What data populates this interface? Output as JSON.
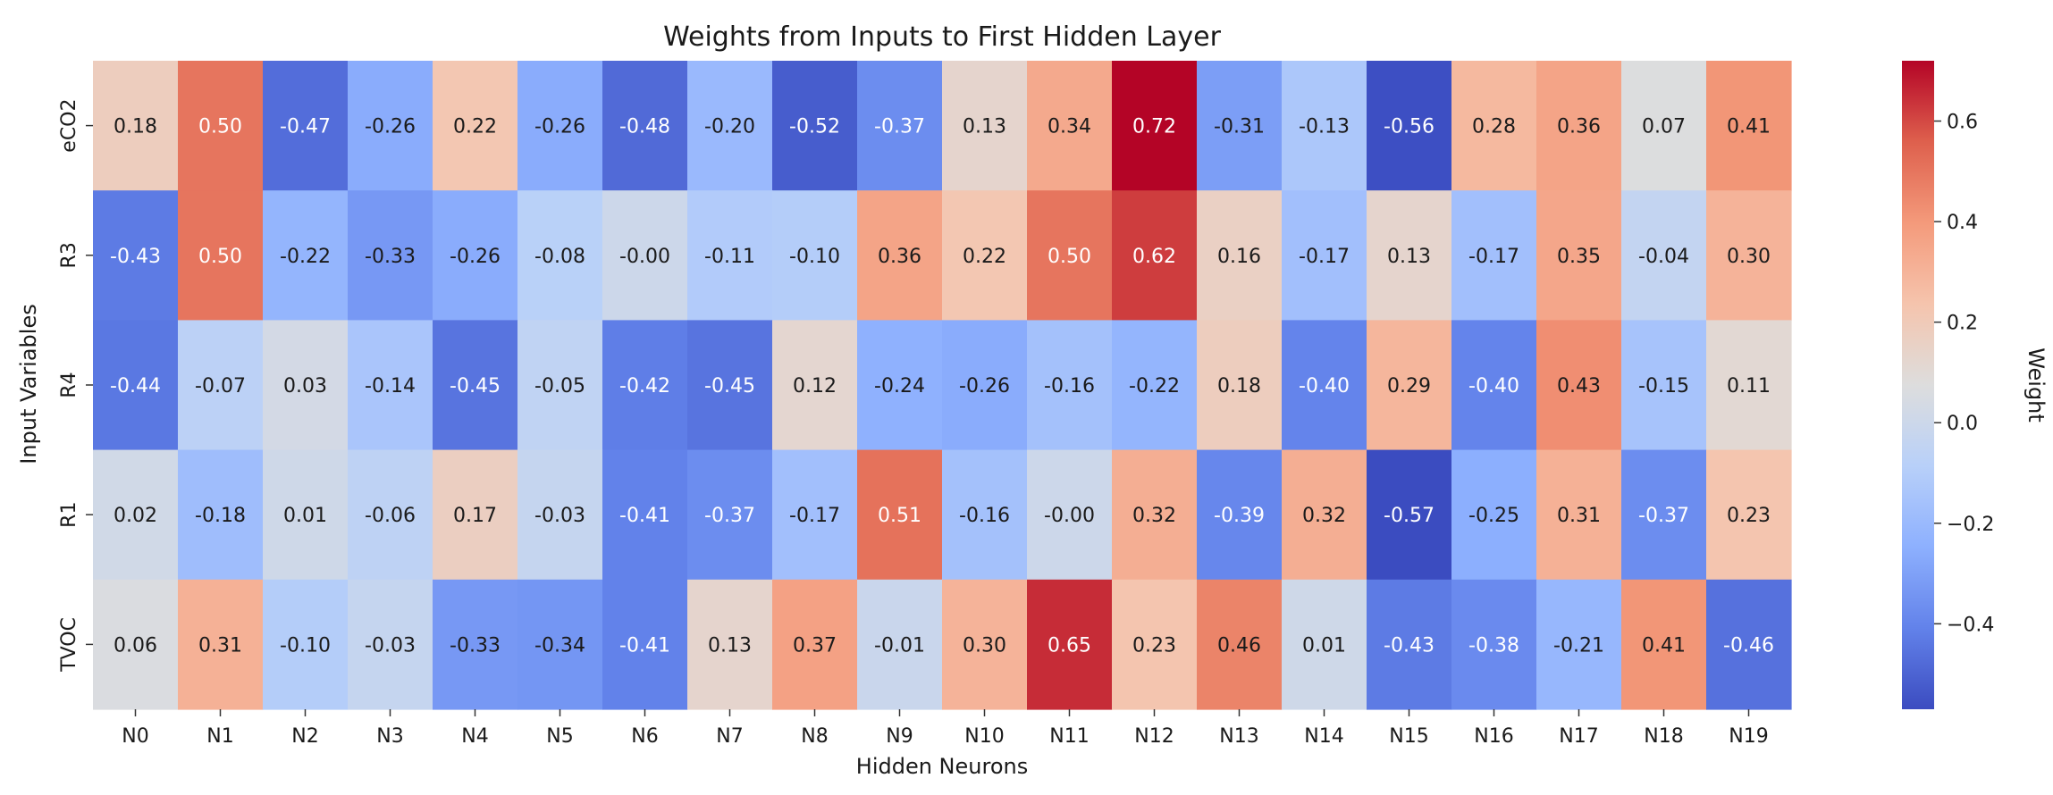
{
  "chart_data": {
    "type": "heatmap",
    "title": "Weights from Inputs to First Hidden Layer",
    "xlabel": "Hidden Neurons",
    "ylabel": "Input Variables",
    "colorbar_label": "Weight",
    "colormap": "coolwarm",
    "x_categories": [
      "N0",
      "N1",
      "N2",
      "N3",
      "N4",
      "N5",
      "N6",
      "N7",
      "N8",
      "N9",
      "N10",
      "N11",
      "N12",
      "N13",
      "N14",
      "N15",
      "N16",
      "N17",
      "N18",
      "N19"
    ],
    "y_categories": [
      "eCO2",
      "R3",
      "R4",
      "R1",
      "TVOC"
    ],
    "values": [
      [
        0.18,
        0.5,
        -0.47,
        -0.26,
        0.22,
        -0.26,
        -0.48,
        -0.2,
        -0.52,
        -0.37,
        0.13,
        0.34,
        0.72,
        -0.31,
        -0.13,
        -0.56,
        0.28,
        0.36,
        0.07,
        0.41
      ],
      [
        -0.43,
        0.5,
        -0.22,
        -0.33,
        -0.26,
        -0.08,
        -0.0,
        -0.11,
        -0.1,
        0.36,
        0.22,
        0.5,
        0.62,
        0.16,
        -0.17,
        0.13,
        -0.17,
        0.35,
        -0.04,
        0.3
      ],
      [
        -0.44,
        -0.07,
        0.03,
        -0.14,
        -0.45,
        -0.05,
        -0.42,
        -0.45,
        0.12,
        -0.24,
        -0.26,
        -0.16,
        -0.22,
        0.18,
        -0.4,
        0.29,
        -0.4,
        0.43,
        -0.15,
        0.11
      ],
      [
        0.02,
        -0.18,
        0.01,
        -0.06,
        0.17,
        -0.03,
        -0.41,
        -0.37,
        -0.17,
        0.51,
        -0.16,
        -0.0,
        0.32,
        -0.39,
        0.32,
        -0.57,
        -0.25,
        0.31,
        -0.37,
        0.23
      ],
      [
        0.06,
        0.31,
        -0.1,
        -0.03,
        -0.33,
        -0.34,
        -0.41,
        0.13,
        0.37,
        -0.01,
        0.3,
        0.65,
        0.23,
        0.46,
        0.01,
        -0.43,
        -0.38,
        -0.21,
        0.41,
        -0.46
      ]
    ],
    "labels": [
      [
        "0.18",
        "0.50",
        "-0.47",
        "-0.26",
        "0.22",
        "-0.26",
        "-0.48",
        "-0.20",
        "-0.52",
        "-0.37",
        "0.13",
        "0.34",
        "0.72",
        "-0.31",
        "-0.13",
        "-0.56",
        "0.28",
        "0.36",
        "0.07",
        "0.41"
      ],
      [
        "-0.43",
        "0.50",
        "-0.22",
        "-0.33",
        "-0.26",
        "-0.08",
        "-0.00",
        "-0.11",
        "-0.10",
        "0.36",
        "0.22",
        "0.50",
        "0.62",
        "0.16",
        "-0.17",
        "0.13",
        "-0.17",
        "0.35",
        "-0.04",
        "0.30"
      ],
      [
        "-0.44",
        "-0.07",
        "0.03",
        "-0.14",
        "-0.45",
        "-0.05",
        "-0.42",
        "-0.45",
        "0.12",
        "-0.24",
        "-0.26",
        "-0.16",
        "-0.22",
        "0.18",
        "-0.40",
        "0.29",
        "-0.40",
        "0.43",
        "-0.15",
        "0.11"
      ],
      [
        "0.02",
        "-0.18",
        "0.01",
        "-0.06",
        "0.17",
        "-0.03",
        "-0.41",
        "-0.37",
        "-0.17",
        "0.51",
        "-0.16",
        "-0.00",
        "0.32",
        "-0.39",
        "0.32",
        "-0.57",
        "-0.25",
        "0.31",
        "-0.37",
        "0.23"
      ],
      [
        "0.06",
        "0.31",
        "-0.10",
        "-0.03",
        "-0.33",
        "-0.34",
        "-0.41",
        "0.13",
        "0.37",
        "-0.01",
        "0.30",
        "0.65",
        "0.23",
        "0.46",
        "0.01",
        "-0.43",
        "-0.38",
        "-0.21",
        "0.41",
        "-0.46"
      ]
    ],
    "vmin": -0.57,
    "vmax": 0.72,
    "colorbar_ticks": [
      0.6,
      0.4,
      0.2,
      0.0,
      -0.2,
      -0.4
    ],
    "colorbar_tick_labels": [
      "0.6",
      "0.4",
      "0.2",
      "0.0",
      "−0.2",
      "−0.4"
    ],
    "grid": false
  }
}
